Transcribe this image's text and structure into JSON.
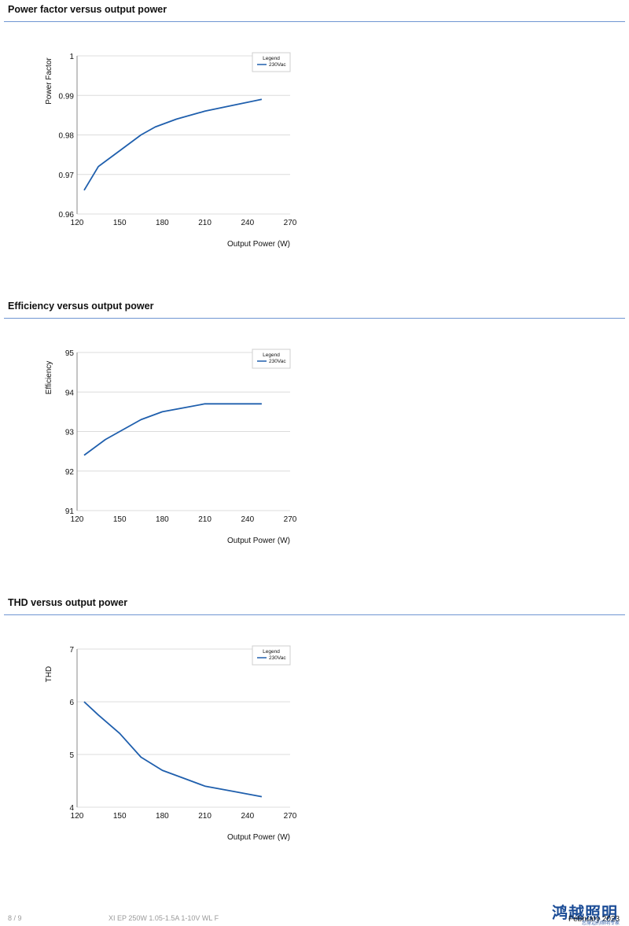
{
  "sections": [
    {
      "title": "Power factor versus output power"
    },
    {
      "title": "Efficiency versus output power"
    },
    {
      "title": "THD versus output power"
    }
  ],
  "chart_data": [
    {
      "type": "line",
      "xlabel": "Output Power (W)",
      "ylabel": "Power Factor",
      "xlim": [
        120,
        270
      ],
      "ylim": [
        0.96,
        1
      ],
      "xticks": [
        120,
        150,
        180,
        210,
        240,
        270
      ],
      "xtick_labels": [
        "120",
        "150",
        "180",
        "210",
        "240",
        "270"
      ],
      "yticks": [
        0.96,
        0.97,
        0.98,
        0.99,
        1
      ],
      "ytick_labels": [
        "0.96",
        "0.97",
        "0.98",
        "0.99",
        "1"
      ],
      "grid": true,
      "legend_title": "Legend",
      "legend_position": "top-right",
      "series": [
        {
          "name": "230Vac",
          "color": "#1f5fad",
          "x": [
            125,
            135,
            150,
            165,
            175,
            190,
            210,
            230,
            250
          ],
          "y": [
            0.966,
            0.972,
            0.976,
            0.98,
            0.982,
            0.984,
            0.986,
            0.9875,
            0.989
          ]
        }
      ]
    },
    {
      "type": "line",
      "xlabel": "Output Power (W)",
      "ylabel": "Efficiency",
      "xlim": [
        120,
        270
      ],
      "ylim": [
        91,
        95
      ],
      "xticks": [
        120,
        150,
        180,
        210,
        240,
        270
      ],
      "xtick_labels": [
        "120",
        "150",
        "180",
        "210",
        "240",
        "270"
      ],
      "yticks": [
        91,
        92,
        93,
        94,
        95
      ],
      "ytick_labels": [
        "91",
        "92",
        "93",
        "94",
        "95"
      ],
      "grid": true,
      "legend_title": "Legend",
      "legend_position": "top-right",
      "series": [
        {
          "name": "230Vac",
          "color": "#1f5fad",
          "x": [
            125,
            140,
            150,
            165,
            180,
            195,
            210,
            230,
            250
          ],
          "y": [
            92.4,
            92.8,
            93.0,
            93.3,
            93.5,
            93.6,
            93.7,
            93.7,
            93.7
          ]
        }
      ]
    },
    {
      "type": "line",
      "xlabel": "Output Power (W)",
      "ylabel": "THD",
      "xlim": [
        120,
        270
      ],
      "ylim": [
        4,
        7
      ],
      "xticks": [
        120,
        150,
        180,
        210,
        240,
        270
      ],
      "xtick_labels": [
        "120",
        "150",
        "180",
        "210",
        "240",
        "270"
      ],
      "yticks": [
        4,
        5,
        6,
        7
      ],
      "ytick_labels": [
        "4",
        "5",
        "6",
        "7"
      ],
      "grid": true,
      "legend_title": "Legend",
      "legend_position": "top-right",
      "series": [
        {
          "name": "230Vac",
          "color": "#1f5fad",
          "x": [
            125,
            135,
            150,
            165,
            180,
            195,
            210,
            230,
            250
          ],
          "y": [
            6.0,
            5.75,
            5.4,
            4.95,
            4.7,
            4.55,
            4.4,
            4.3,
            4.2
          ]
        }
      ]
    }
  ],
  "footer": {
    "page": "8 / 9",
    "product": "XI EP 250W 1.05-1.5A 1-10V WL F",
    "date": "February 2023",
    "brand": "鸿越照明",
    "brand_sub": "您身边的照明专家"
  }
}
